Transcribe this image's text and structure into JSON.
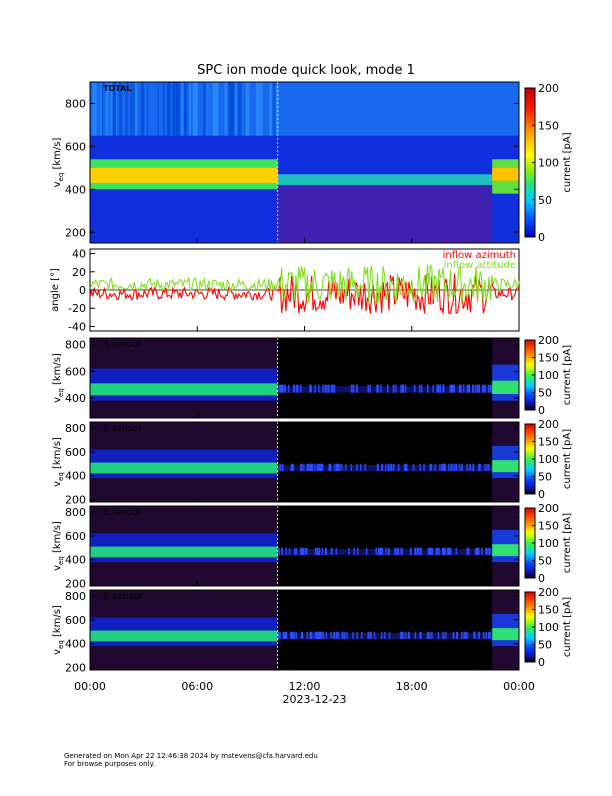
{
  "title": "SPC ion mode quick look, mode 1",
  "chart_data": {
    "type": "heatmap",
    "x_tick_labels": [
      "00:00",
      "06:00",
      "12:00",
      "18:00",
      "00:00"
    ],
    "x_range_hours": [
      0,
      24
    ],
    "date_label": "2023-12-23",
    "data_gap_start_hour": 10.5,
    "panels": [
      {
        "id": "total",
        "type": "heatmap",
        "label": "TOTAL",
        "ylabel": "v",
        "ylabel_sub": "eq",
        "ylabel_unit": "[km/s]",
        "ylim": [
          150,
          900
        ],
        "yticks": [
          200,
          400,
          600,
          800
        ],
        "cbar_label": "current [pA]",
        "cbar_ticks": [
          0,
          50,
          100,
          150,
          200
        ],
        "cbar_range": [
          0,
          200
        ]
      },
      {
        "id": "angles",
        "type": "line",
        "ylabel": "angle [°]",
        "ylim": [
          -45,
          45
        ],
        "yticks": [
          -40,
          -20,
          0,
          20,
          40
        ],
        "series": [
          {
            "name": "inflow azimuth",
            "color": "#ff0000"
          },
          {
            "name": "inflow attitude",
            "color": "#80e020"
          }
        ]
      },
      {
        "id": "sensor-a",
        "type": "heatmap",
        "label": "A sensor",
        "ylabel": "v",
        "ylabel_sub": "eq",
        "ylabel_unit": "[km/s]",
        "ylim": [
          250,
          850
        ],
        "yticks": [
          400,
          600,
          800
        ],
        "cbar_label": "current [pA]",
        "cbar_ticks": [
          0,
          50,
          100,
          150,
          200
        ],
        "cbar_range": [
          0,
          200
        ]
      },
      {
        "id": "sensor-b",
        "type": "heatmap",
        "label": "B sensor",
        "ylabel": "v",
        "ylabel_sub": "eq",
        "ylabel_unit": "[km/s]",
        "ylim": [
          180,
          850
        ],
        "yticks": [
          200,
          400,
          600,
          800
        ],
        "cbar_label": "current [pA]",
        "cbar_ticks": [
          0,
          50,
          100,
          150,
          200
        ],
        "cbar_range": [
          0,
          200
        ]
      },
      {
        "id": "sensor-c",
        "type": "heatmap",
        "label": "C sensor",
        "ylabel": "v",
        "ylabel_sub": "eq",
        "ylabel_unit": "[km/s]",
        "ylim": [
          180,
          850
        ],
        "yticks": [
          200,
          400,
          600,
          800
        ],
        "cbar_label": "current [pA]",
        "cbar_ticks": [
          0,
          50,
          100,
          150,
          200
        ],
        "cbar_range": [
          0,
          200
        ]
      },
      {
        "id": "sensor-d",
        "type": "heatmap",
        "label": "D sensor",
        "ylabel": "v",
        "ylabel_sub": "eq",
        "ylabel_unit": "[km/s]",
        "ylim": [
          180,
          850
        ],
        "yticks": [
          200,
          400,
          600,
          800
        ],
        "cbar_label": "current [pA]",
        "cbar_ticks": [
          0,
          50,
          100,
          150,
          200
        ],
        "cbar_range": [
          0,
          200
        ]
      }
    ]
  },
  "footer": {
    "line1": "Generated on Mon Apr 22 12:46:38 2024 by mstevens@cfa.harvard.edu",
    "line2": "For browse purposes only."
  }
}
